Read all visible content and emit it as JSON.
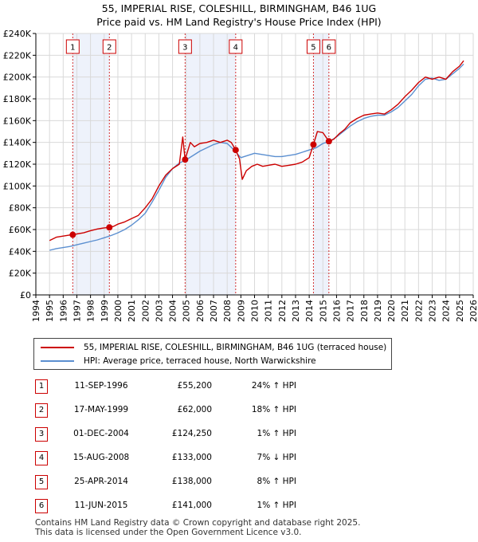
{
  "title_line1": "55, IMPERIAL RISE, COLESHILL, BIRMINGHAM, B46 1UG",
  "title_line2": "Price paid vs. HM Land Registry's House Price Index (HPI)",
  "colors": {
    "red": "#cc0000",
    "blue": "#5b8fd0",
    "band": "#eef2fb",
    "grid": "#d9d9d9"
  },
  "legend": {
    "red_label": "55, IMPERIAL RISE, COLESHILL, BIRMINGHAM, B46 1UG (terraced house)",
    "blue_label": "HPI: Average price, terraced house, North Warwickshire"
  },
  "chart_data": {
    "type": "line",
    "title": "55, IMPERIAL RISE, COLESHILL, BIRMINGHAM, B46 1UG",
    "subtitle": "Price paid vs. HM Land Registry's House Price Index (HPI)",
    "xlim": [
      1994,
      2026
    ],
    "ylim": [
      0,
      240000
    ],
    "y_ticks": [
      0,
      20000,
      40000,
      60000,
      80000,
      100000,
      120000,
      140000,
      160000,
      180000,
      200000,
      220000,
      240000
    ],
    "y_tick_labels": [
      "£0",
      "£20K",
      "£40K",
      "£60K",
      "£80K",
      "£100K",
      "£120K",
      "£140K",
      "£160K",
      "£180K",
      "£200K",
      "£220K",
      "£240K"
    ],
    "x_ticks": [
      1994,
      1995,
      1996,
      1997,
      1998,
      1999,
      2000,
      2001,
      2002,
      2003,
      2004,
      2005,
      2006,
      2007,
      2008,
      2009,
      2010,
      2011,
      2012,
      2013,
      2014,
      2015,
      2016,
      2017,
      2018,
      2019,
      2020,
      2021,
      2022,
      2023,
      2024,
      2025,
      2026
    ],
    "shaded_bands": [
      [
        1996.7,
        1999.38
      ],
      [
        2004.92,
        2008.62
      ],
      [
        2014.31,
        2015.44
      ]
    ],
    "series": [
      {
        "name": "55, IMPERIAL RISE, COLESHILL, BIRMINGHAM, B46 1UG (terraced house)",
        "color": "#cc0000",
        "x": [
          1995.0,
          1995.5,
          1996.0,
          1996.5,
          1996.7,
          1997.0,
          1997.5,
          1998.0,
          1998.5,
          1999.0,
          1999.38,
          1999.7,
          2000.0,
          2000.5,
          2001.0,
          2001.5,
          2002.0,
          2002.5,
          2003.0,
          2003.5,
          2004.0,
          2004.5,
          2004.75,
          2004.92,
          2005.3,
          2005.6,
          2006.0,
          2006.5,
          2007.0,
          2007.5,
          2008.0,
          2008.3,
          2008.62,
          2008.9,
          2009.1,
          2009.4,
          2009.8,
          2010.2,
          2010.6,
          2011.0,
          2011.5,
          2012.0,
          2012.5,
          2013.0,
          2013.5,
          2014.0,
          2014.31,
          2014.6,
          2015.0,
          2015.44,
          2015.8,
          2016.2,
          2016.6,
          2017.0,
          2017.5,
          2018.0,
          2018.5,
          2019.0,
          2019.5,
          2020.0,
          2020.5,
          2021.0,
          2021.5,
          2022.0,
          2022.5,
          2023.0,
          2023.5,
          2024.0,
          2024.5,
          2025.0,
          2025.3
        ],
        "values": [
          50000,
          53000,
          54000,
          55000,
          55200,
          56000,
          57000,
          59000,
          60500,
          61500,
          62000,
          63000,
          65000,
          67000,
          70000,
          73000,
          80000,
          88000,
          100000,
          110000,
          116000,
          120000,
          145000,
          124250,
          140000,
          136000,
          139000,
          140000,
          142000,
          140000,
          142000,
          140000,
          133000,
          125000,
          106000,
          114000,
          118000,
          120000,
          118000,
          119000,
          120000,
          118000,
          119000,
          120000,
          122000,
          126000,
          138000,
          150000,
          149000,
          141000,
          143000,
          148000,
          152000,
          158000,
          162000,
          165000,
          166000,
          167000,
          166000,
          170000,
          175000,
          182000,
          188000,
          195000,
          200000,
          198000,
          200000,
          198000,
          205000,
          210000,
          215000
        ]
      },
      {
        "name": "HPI: Average price, terraced house, North Warwickshire",
        "color": "#5b8fd0",
        "x": [
          1995.0,
          1995.5,
          1996.0,
          1996.5,
          1997.0,
          1997.5,
          1998.0,
          1998.5,
          1999.0,
          1999.5,
          2000.0,
          2000.5,
          2001.0,
          2001.5,
          2002.0,
          2002.5,
          2003.0,
          2003.5,
          2004.0,
          2004.5,
          2005.0,
          2005.5,
          2006.0,
          2006.5,
          2007.0,
          2007.5,
          2008.0,
          2008.5,
          2009.0,
          2009.5,
          2010.0,
          2010.5,
          2011.0,
          2011.5,
          2012.0,
          2012.5,
          2013.0,
          2013.5,
          2014.0,
          2014.5,
          2015.0,
          2015.5,
          2016.0,
          2016.5,
          2017.0,
          2017.5,
          2018.0,
          2018.5,
          2019.0,
          2019.5,
          2020.0,
          2020.5,
          2021.0,
          2021.5,
          2022.0,
          2022.5,
          2023.0,
          2023.5,
          2024.0,
          2024.5,
          2025.0,
          2025.3
        ],
        "values": [
          41000,
          42500,
          43500,
          44500,
          46000,
          47500,
          49000,
          50500,
          52500,
          54500,
          57000,
          60000,
          64000,
          69000,
          75000,
          85000,
          96000,
          108000,
          116000,
          121000,
          124000,
          128000,
          132000,
          135000,
          138000,
          140000,
          139000,
          133000,
          126000,
          128000,
          130000,
          129000,
          128000,
          127000,
          127000,
          128000,
          129000,
          131000,
          133000,
          135000,
          139000,
          141000,
          145000,
          150000,
          155000,
          159000,
          162000,
          164000,
          165000,
          165000,
          168000,
          172000,
          178000,
          184000,
          192000,
          198000,
          199000,
          197000,
          198000,
          203000,
          208000,
          212000
        ]
      }
    ],
    "sales": [
      {
        "n": "1",
        "x": 1996.7,
        "price": 55200
      },
      {
        "n": "2",
        "x": 1999.38,
        "price": 62000
      },
      {
        "n": "3",
        "x": 2004.92,
        "price": 124250
      },
      {
        "n": "4",
        "x": 2008.62,
        "price": 133000
      },
      {
        "n": "5",
        "x": 2014.31,
        "price": 138000
      },
      {
        "n": "6",
        "x": 2015.44,
        "price": 141000
      }
    ]
  },
  "sales_table": [
    {
      "n": "1",
      "date": "11-SEP-1996",
      "price": "£55,200",
      "hpi": "24% ↑ HPI"
    },
    {
      "n": "2",
      "date": "17-MAY-1999",
      "price": "£62,000",
      "hpi": "18% ↑ HPI"
    },
    {
      "n": "3",
      "date": "01-DEC-2004",
      "price": "£124,250",
      "hpi": "1% ↑ HPI"
    },
    {
      "n": "4",
      "date": "15-AUG-2008",
      "price": "£133,000",
      "hpi": "7% ↓ HPI"
    },
    {
      "n": "5",
      "date": "25-APR-2014",
      "price": "£138,000",
      "hpi": "8% ↑ HPI"
    },
    {
      "n": "6",
      "date": "11-JUN-2015",
      "price": "£141,000",
      "hpi": "1% ↑ HPI"
    }
  ],
  "footer": {
    "line1": "Contains HM Land Registry data © Crown copyright and database right 2025.",
    "line2": "This data is licensed under the Open Government Licence v3.0."
  }
}
